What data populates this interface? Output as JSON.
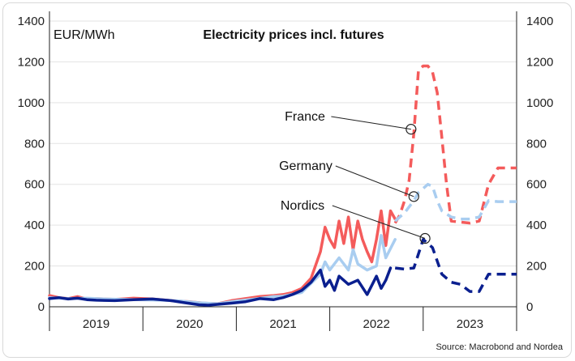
{
  "chart_data": {
    "type": "line",
    "title": "Electricity prices incl. futures",
    "unit_label": "EUR/MWh",
    "source": "Source: Macrobond and Nordea",
    "ylim": [
      0,
      1400
    ],
    "yticks": [
      "0",
      "200",
      "400",
      "600",
      "800",
      "1000",
      "1200",
      "1400"
    ],
    "xlim": [
      2018.5,
      2023.5
    ],
    "years": [
      "2019",
      "2020",
      "2021",
      "2022",
      "2023"
    ],
    "grid": true,
    "legend": "none",
    "annotations": [
      {
        "label": "France",
        "x": 2022.37,
        "y": 870
      },
      {
        "label": "Germany",
        "x": 2022.4,
        "y": 540
      },
      {
        "label": "Nordics",
        "x": 2022.52,
        "y": 335
      }
    ],
    "series": [
      {
        "name": "France",
        "color": "#f45b5b",
        "style": "solid",
        "x": [
          2018.5,
          2018.6,
          2018.7,
          2018.8,
          2018.9,
          2019.0,
          2019.2,
          2019.4,
          2019.6,
          2019.8,
          2020.0,
          2020.15,
          2020.3,
          2020.45,
          2020.6,
          2020.75,
          2020.9,
          2021.0,
          2021.1,
          2021.2,
          2021.3,
          2021.4,
          2021.45,
          2021.5,
          2021.55,
          2021.6,
          2021.65,
          2021.7,
          2021.75,
          2021.8,
          2021.85,
          2021.9,
          2021.95,
          2022.0,
          2022.05,
          2022.1,
          2022.15,
          2022.2
        ],
        "y": [
          55,
          45,
          40,
          50,
          38,
          40,
          36,
          42,
          38,
          30,
          25,
          18,
          15,
          30,
          40,
          50,
          55,
          60,
          70,
          90,
          140,
          270,
          390,
          330,
          290,
          420,
          310,
          440,
          280,
          420,
          330,
          270,
          220,
          330,
          470,
          300,
          470,
          430
        ]
      },
      {
        "name": "France",
        "color": "#f45b5b",
        "style": "dashed",
        "x": [
          2022.2,
          2022.25,
          2022.3,
          2022.35,
          2022.4,
          2022.45,
          2022.5,
          2022.55,
          2022.6,
          2022.65,
          2022.7,
          2022.75,
          2022.8,
          2022.9,
          2023.0,
          2023.1,
          2023.2,
          2023.3,
          2023.4,
          2023.5
        ],
        "y": [
          410,
          450,
          520,
          620,
          850,
          1160,
          1180,
          1180,
          1150,
          1050,
          830,
          600,
          420,
          415,
          410,
          420,
          600,
          680,
          680,
          680
        ]
      },
      {
        "name": "Germany",
        "color": "#a9cdf0",
        "style": "solid",
        "x": [
          2018.5,
          2018.7,
          2018.9,
          2019.1,
          2019.3,
          2019.5,
          2019.7,
          2019.9,
          2020.1,
          2020.3,
          2020.5,
          2020.7,
          2020.9,
          2021.0,
          2021.2,
          2021.4,
          2021.45,
          2021.5,
          2021.6,
          2021.7,
          2021.75,
          2021.8,
          2021.9,
          2022.0,
          2022.05,
          2022.1,
          2022.2
        ],
        "y": [
          45,
          40,
          42,
          38,
          36,
          34,
          32,
          28,
          20,
          15,
          28,
          38,
          50,
          52,
          70,
          160,
          220,
          180,
          240,
          180,
          280,
          210,
          180,
          200,
          350,
          240,
          330
        ]
      },
      {
        "name": "Germany",
        "color": "#a9cdf0",
        "style": "dashed",
        "x": [
          2022.2,
          2022.3,
          2022.4,
          2022.45,
          2022.5,
          2022.55,
          2022.6,
          2022.65,
          2022.7,
          2022.8,
          2022.9,
          2023.0,
          2023.1,
          2023.2,
          2023.3,
          2023.4,
          2023.5
        ],
        "y": [
          420,
          460,
          520,
          560,
          580,
          600,
          590,
          520,
          470,
          440,
          430,
          430,
          440,
          520,
          515,
          515,
          515
        ]
      },
      {
        "name": "Nordics",
        "color": "#0a1f8f",
        "style": "solid",
        "x": [
          2018.5,
          2018.6,
          2018.7,
          2018.8,
          2018.9,
          2019.0,
          2019.2,
          2019.4,
          2019.6,
          2019.8,
          2019.95,
          2020.1,
          2020.2,
          2020.3,
          2020.45,
          2020.6,
          2020.75,
          2020.9,
          2021.0,
          2021.1,
          2021.2,
          2021.3,
          2021.35,
          2021.4,
          2021.45,
          2021.5,
          2021.55,
          2021.6,
          2021.7,
          2021.8,
          2021.9,
          2022.0,
          2022.05,
          2022.1,
          2022.15
        ],
        "y": [
          40,
          45,
          38,
          42,
          35,
          32,
          30,
          35,
          38,
          30,
          20,
          10,
          8,
          12,
          18,
          25,
          40,
          35,
          45,
          60,
          80,
          120,
          150,
          180,
          100,
          130,
          80,
          150,
          110,
          130,
          60,
          150,
          90,
          130,
          190
        ]
      },
      {
        "name": "Nordics",
        "color": "#0a1f8f",
        "style": "dashed",
        "x": [
          2022.2,
          2022.3,
          2022.4,
          2022.5,
          2022.6,
          2022.7,
          2022.8,
          2022.9,
          2023.0,
          2023.1,
          2023.2,
          2023.3,
          2023.4,
          2023.5
        ],
        "y": [
          190,
          185,
          190,
          330,
          290,
          160,
          120,
          110,
          75,
          75,
          160,
          160,
          160,
          160
        ]
      }
    ]
  }
}
